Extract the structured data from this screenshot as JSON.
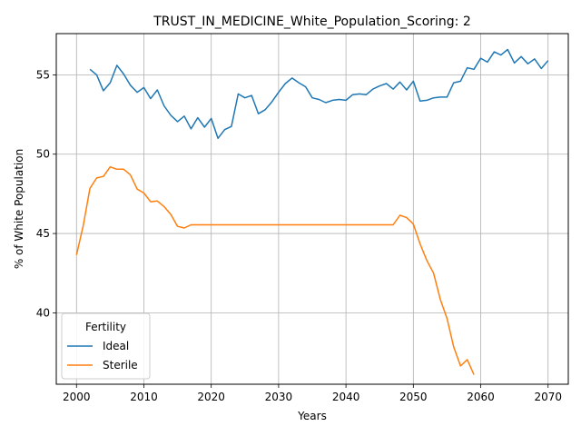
{
  "chart_data": {
    "type": "line",
    "title": "TRUST_IN_MEDICINE_White_Population_Scoring: 2",
    "xlabel": "Years",
    "ylabel": "% of White Population",
    "xlim": [
      1997,
      2073
    ],
    "ylim": [
      35.5,
      57.6
    ],
    "xticks": [
      2000,
      2010,
      2020,
      2030,
      2040,
      2050,
      2060,
      2070
    ],
    "yticks": [
      40,
      45,
      50,
      55
    ],
    "grid": true,
    "legend": {
      "title": "Fertility",
      "placement": "lower-left"
    },
    "series": [
      {
        "name": "Ideal",
        "color": "#1f77b4",
        "x": [
          2002,
          2003,
          2004,
          2005,
          2006,
          2007,
          2008,
          2009,
          2010,
          2011,
          2012,
          2013,
          2014,
          2015,
          2016,
          2017,
          2018,
          2019,
          2020,
          2021,
          2022,
          2023,
          2024,
          2025,
          2026,
          2027,
          2028,
          2029,
          2030,
          2031,
          2032,
          2033,
          2034,
          2035,
          2036,
          2037,
          2038,
          2039,
          2040,
          2041,
          2042,
          2043,
          2044,
          2045,
          2046,
          2047,
          2048,
          2049,
          2050,
          2051,
          2052,
          2053,
          2054,
          2055,
          2056,
          2057,
          2058,
          2059,
          2060,
          2061,
          2062,
          2063,
          2064,
          2065,
          2066,
          2067,
          2068,
          2069,
          2070
        ],
        "values": [
          55.35,
          55.0,
          54.0,
          54.5,
          55.6,
          55.05,
          54.35,
          53.9,
          54.2,
          53.5,
          54.05,
          53.05,
          52.45,
          52.05,
          52.4,
          51.6,
          52.3,
          51.7,
          52.25,
          51.0,
          51.55,
          51.75,
          53.8,
          53.55,
          53.7,
          52.55,
          52.8,
          53.3,
          53.9,
          54.45,
          54.8,
          54.5,
          54.25,
          53.55,
          53.45,
          53.25,
          53.4,
          53.45,
          53.4,
          53.75,
          53.8,
          53.75,
          54.1,
          54.3,
          54.45,
          54.1,
          54.55,
          54.05,
          54.6,
          53.35,
          53.4,
          53.55,
          53.6,
          53.6,
          54.5,
          54.6,
          55.45,
          55.35,
          56.05,
          55.8,
          56.45,
          56.25,
          56.6,
          55.75,
          56.15,
          55.7,
          56.0,
          55.4,
          55.9
        ]
      },
      {
        "name": "Sterile",
        "color": "#ff7f0e",
        "x": [
          2000,
          2001,
          2002,
          2003,
          2004,
          2005,
          2006,
          2007,
          2008,
          2009,
          2010,
          2011,
          2012,
          2013,
          2014,
          2015,
          2016,
          2017,
          2018,
          2019,
          2020,
          2021,
          2022,
          2023,
          2024,
          2025,
          2026,
          2027,
          2028,
          2029,
          2030,
          2031,
          2032,
          2033,
          2034,
          2035,
          2036,
          2037,
          2038,
          2039,
          2040,
          2041,
          2042,
          2043,
          2044,
          2045,
          2046,
          2047,
          2048,
          2049,
          2050,
          2051,
          2052,
          2053,
          2054,
          2055,
          2056,
          2057,
          2058,
          2059
        ],
        "values": [
          43.65,
          45.5,
          47.85,
          48.5,
          48.6,
          49.2,
          49.05,
          49.05,
          48.7,
          47.8,
          47.55,
          47.0,
          47.05,
          46.7,
          46.2,
          45.45,
          45.35,
          45.55,
          45.55,
          45.55,
          45.55,
          45.55,
          45.55,
          45.55,
          45.55,
          45.55,
          45.55,
          45.55,
          45.55,
          45.55,
          45.55,
          45.55,
          45.55,
          45.55,
          45.55,
          45.55,
          45.55,
          45.55,
          45.55,
          45.55,
          45.55,
          45.55,
          45.55,
          45.55,
          45.55,
          45.55,
          45.55,
          45.55,
          46.15,
          46.0,
          45.6,
          44.35,
          43.3,
          42.5,
          40.85,
          39.65,
          37.85,
          36.65,
          37.05,
          36.1
        ]
      }
    ]
  }
}
